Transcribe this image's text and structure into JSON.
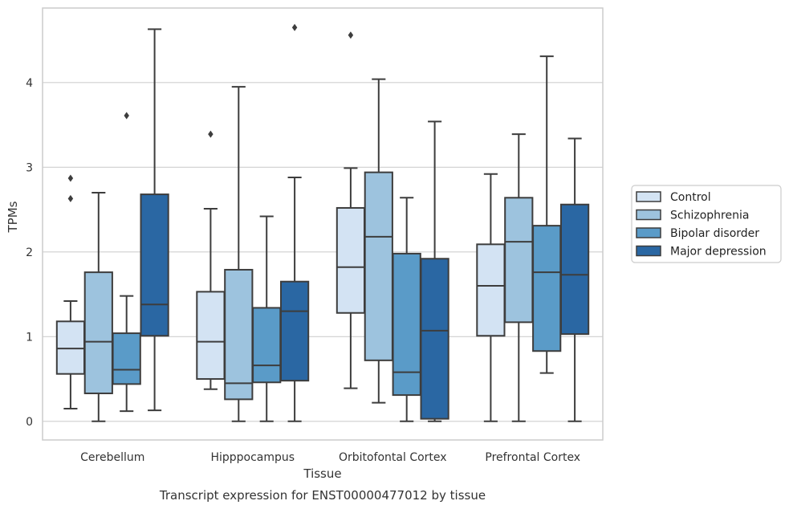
{
  "caption": "Transcript expression for ENST00000477012 by tissue",
  "chart_data": {
    "type": "box",
    "xlabel": "Tissue",
    "ylabel": "TPMs",
    "ylim": [
      -0.22,
      4.88
    ],
    "yticks": [
      0,
      1,
      2,
      3,
      4
    ],
    "grid": "horizontal",
    "legend_position": "right",
    "categories": [
      "Cerebellum",
      "Hipppocampus",
      "Orbitofontal Cortex",
      "Prefrontal Cortex"
    ],
    "series": [
      {
        "name": "Control",
        "color": "#d3e3f3",
        "boxes": [
          {
            "whisker_low": 0.15,
            "q1": 0.56,
            "median": 0.86,
            "q3": 1.18,
            "whisker_high": 1.42,
            "outliers": [
              2.63,
              2.87
            ]
          },
          {
            "whisker_low": 0.38,
            "q1": 0.5,
            "median": 0.94,
            "q3": 1.53,
            "whisker_high": 2.51,
            "outliers": [
              3.39
            ]
          },
          {
            "whisker_low": 0.39,
            "q1": 1.28,
            "median": 1.82,
            "q3": 2.52,
            "whisker_high": 2.99,
            "outliers": [
              4.56
            ]
          },
          {
            "whisker_low": 0.0,
            "q1": 1.01,
            "median": 1.6,
            "q3": 2.09,
            "whisker_high": 2.92,
            "outliers": []
          }
        ]
      },
      {
        "name": "Schizophrenia",
        "color": "#9dc3de",
        "boxes": [
          {
            "whisker_low": 0.0,
            "q1": 0.33,
            "median": 0.94,
            "q3": 1.76,
            "whisker_high": 2.7,
            "outliers": []
          },
          {
            "whisker_low": 0.0,
            "q1": 0.26,
            "median": 0.45,
            "q3": 1.79,
            "whisker_high": 3.95,
            "outliers": []
          },
          {
            "whisker_low": 0.22,
            "q1": 0.72,
            "median": 2.18,
            "q3": 2.94,
            "whisker_high": 4.04,
            "outliers": []
          },
          {
            "whisker_low": 0.0,
            "q1": 1.17,
            "median": 2.12,
            "q3": 2.64,
            "whisker_high": 3.39,
            "outliers": []
          }
        ]
      },
      {
        "name": "Bipolar disorder",
        "color": "#5a9bc8",
        "boxes": [
          {
            "whisker_low": 0.12,
            "q1": 0.44,
            "median": 0.61,
            "q3": 1.04,
            "whisker_high": 1.48,
            "outliers": [
              3.61
            ]
          },
          {
            "whisker_low": 0.0,
            "q1": 0.46,
            "median": 0.66,
            "q3": 1.34,
            "whisker_high": 2.42,
            "outliers": []
          },
          {
            "whisker_low": 0.0,
            "q1": 0.31,
            "median": 0.58,
            "q3": 1.98,
            "whisker_high": 2.64,
            "outliers": []
          },
          {
            "whisker_low": 0.57,
            "q1": 0.83,
            "median": 1.76,
            "q3": 2.31,
            "whisker_high": 4.31,
            "outliers": []
          }
        ]
      },
      {
        "name": "Major depression",
        "color": "#2a67a3",
        "boxes": [
          {
            "whisker_low": 0.13,
            "q1": 1.01,
            "median": 1.38,
            "q3": 2.68,
            "whisker_high": 4.63,
            "outliers": []
          },
          {
            "whisker_low": 0.0,
            "q1": 0.48,
            "median": 1.3,
            "q3": 1.65,
            "whisker_high": 2.88,
            "outliers": [
              4.65
            ]
          },
          {
            "whisker_low": 0.0,
            "q1": 0.03,
            "median": 1.07,
            "q3": 1.92,
            "whisker_high": 3.54,
            "outliers": []
          },
          {
            "whisker_low": 0.0,
            "q1": 1.03,
            "median": 1.73,
            "q3": 2.56,
            "whisker_high": 3.34,
            "outliers": []
          }
        ]
      }
    ]
  }
}
